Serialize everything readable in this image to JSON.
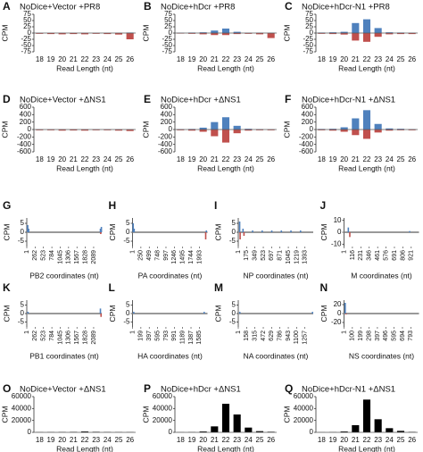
{
  "chart_data": [
    {
      "type": "bar",
      "panel": "A",
      "title": "NoDice+Vector +PR8",
      "x_label": "Read Length (nt)",
      "y_label": "CPM",
      "categories": [
        "18",
        "19",
        "20",
        "21",
        "22",
        "23",
        "24",
        "25",
        "26"
      ],
      "ylim": [
        -75,
        75
      ],
      "yticks": [
        -75,
        -50,
        -25,
        0,
        25,
        50,
        75
      ],
      "series": [
        {
          "color": "#4f81bd",
          "values": [
            0.5,
            0.5,
            0.5,
            0.5,
            0.5,
            0.5,
            0.5,
            0.5,
            2
          ]
        },
        {
          "color": "#c0504d",
          "values": [
            -3,
            -4,
            -5,
            -4,
            -5,
            -3,
            -4,
            -6,
            -25
          ]
        }
      ]
    },
    {
      "type": "bar",
      "panel": "B",
      "title": "NoDice+hDcr +PR8",
      "x_label": "Read Length (nt)",
      "y_label": "CPM",
      "categories": [
        "18",
        "19",
        "20",
        "21",
        "22",
        "23",
        "24",
        "25",
        "26"
      ],
      "ylim": [
        -75,
        75
      ],
      "yticks": [
        -75,
        -50,
        -25,
        0,
        25,
        50,
        75
      ],
      "series": [
        {
          "color": "#4f81bd",
          "values": [
            1,
            2,
            3,
            10,
            18,
            5,
            1,
            1,
            1
          ]
        },
        {
          "color": "#c0504d",
          "values": [
            -2,
            -3,
            -5,
            -8,
            -8,
            -4,
            -3,
            -5,
            -20
          ]
        }
      ]
    },
    {
      "type": "bar",
      "panel": "C",
      "title": "NoDice+hDcr-N1 +PR8",
      "x_label": "Read Length (nt)",
      "y_label": "CPM",
      "categories": [
        "18",
        "19",
        "20",
        "21",
        "22",
        "23",
        "24",
        "25",
        "26"
      ],
      "ylim": [
        -75,
        75
      ],
      "yticks": [
        -75,
        -50,
        -25,
        0,
        25,
        50,
        75
      ],
      "series": [
        {
          "color": "#4f81bd",
          "values": [
            2,
            3,
            5,
            40,
            55,
            20,
            3,
            2,
            1
          ]
        },
        {
          "color": "#c0504d",
          "values": [
            -3,
            -4,
            -6,
            -30,
            -35,
            -15,
            -5,
            -4,
            -4
          ]
        }
      ]
    },
    {
      "type": "bar",
      "panel": "D",
      "title": "NoDice+Vector +ΔNS1",
      "x_label": "Read Length (nt)",
      "y_label": "CPM",
      "categories": [
        "18",
        "19",
        "20",
        "21",
        "22",
        "23",
        "24",
        "25",
        "26"
      ],
      "ylim": [
        -600,
        600
      ],
      "yticks": [
        -600,
        -400,
        -200,
        0,
        200,
        400,
        600
      ],
      "series": [
        {
          "color": "#4f81bd",
          "values": [
            5,
            5,
            5,
            5,
            5,
            5,
            5,
            5,
            5
          ]
        },
        {
          "color": "#c0504d",
          "values": [
            -20,
            -20,
            -30,
            -25,
            -30,
            -20,
            -20,
            -30,
            -40
          ]
        }
      ]
    },
    {
      "type": "bar",
      "panel": "E",
      "title": "NoDice+hDcr +ΔNS1",
      "x_label": "Read Length (nt)",
      "y_label": "CPM",
      "categories": [
        "18",
        "19",
        "20",
        "21",
        "22",
        "23",
        "24",
        "25",
        "26"
      ],
      "ylim": [
        -600,
        600
      ],
      "yticks": [
        -600,
        -400,
        -200,
        0,
        200,
        400,
        600
      ],
      "series": [
        {
          "color": "#4f81bd",
          "values": [
            10,
            15,
            50,
            200,
            330,
            100,
            20,
            10,
            5
          ]
        },
        {
          "color": "#c0504d",
          "values": [
            -20,
            -30,
            -60,
            -180,
            -350,
            -100,
            -30,
            -20,
            -20
          ]
        }
      ]
    },
    {
      "type": "bar",
      "panel": "F",
      "title": "NoDice+hDcr-N1 +ΔNS1",
      "x_label": "Read Length (nt)",
      "y_label": "CPM",
      "categories": [
        "18",
        "19",
        "20",
        "21",
        "22",
        "23",
        "24",
        "25",
        "26"
      ],
      "ylim": [
        -600,
        600
      ],
      "yticks": [
        -600,
        -400,
        -200,
        0,
        200,
        400,
        600
      ],
      "series": [
        {
          "color": "#4f81bd",
          "values": [
            15,
            20,
            60,
            300,
            520,
            150,
            30,
            20,
            10
          ]
        },
        {
          "color": "#c0504d",
          "values": [
            -20,
            -30,
            -60,
            -150,
            -250,
            -80,
            -30,
            -20,
            -20
          ]
        }
      ]
    },
    {
      "type": "coverage",
      "panel": "G",
      "x_label": "PB2 coordinates (nt)",
      "y_label": "CPM",
      "xlim": [
        1,
        2341
      ],
      "xticks": [
        1,
        262,
        523,
        784,
        1045,
        1306,
        1567,
        1828,
        2089
      ],
      "ylim": [
        -8,
        8
      ],
      "yticks": [
        -5,
        0,
        5
      ],
      "series": [
        {
          "color": "#4f81bd",
          "x": [
            30,
            60,
            2300,
            2330
          ],
          "values": [
            4,
            2,
            2,
            3
          ]
        },
        {
          "color": "#c0504d",
          "x": [
            2310
          ],
          "values": [
            -1
          ]
        }
      ]
    },
    {
      "type": "coverage",
      "panel": "H",
      "x_label": "PA coordinates (nt)",
      "y_label": "CPM",
      "xlim": [
        1,
        2233
      ],
      "xticks": [
        1,
        250,
        499,
        748,
        997,
        1246,
        1495,
        1744,
        1993
      ],
      "ylim": [
        -8,
        8
      ],
      "yticks": [
        -5,
        0,
        5
      ],
      "series": [
        {
          "color": "#4f81bd",
          "x": [
            20,
            50,
            2200
          ],
          "values": [
            5,
            2,
            1
          ]
        },
        {
          "color": "#c0504d",
          "x": [
            2180
          ],
          "values": [
            -4
          ]
        }
      ]
    },
    {
      "type": "coverage",
      "panel": "I",
      "x_label": "NP coordinates (nt)",
      "y_label": "CPM",
      "xlim": [
        1,
        1565
      ],
      "xticks": [
        1,
        175,
        349,
        523,
        697,
        871,
        1045,
        1219,
        1393
      ],
      "ylim": [
        -8,
        8
      ],
      "yticks": [
        -5,
        0,
        5
      ],
      "series": [
        {
          "color": "#4f81bd",
          "x": [
            30,
            100,
            300,
            500,
            700,
            900,
            1100,
            1300
          ],
          "values": [
            6,
            2,
            1,
            1,
            1,
            1,
            1,
            1
          ]
        },
        {
          "color": "#c0504d",
          "x": [
            40,
            120
          ],
          "values": [
            -4,
            -2
          ]
        }
      ]
    },
    {
      "type": "coverage",
      "panel": "J",
      "x_label": "M coordinates (nt)",
      "y_label": "CPM",
      "xlim": [
        1,
        1027
      ],
      "xticks": [
        1,
        116,
        231,
        346,
        461,
        576,
        691,
        806,
        921
      ],
      "ylim": [
        -12,
        12
      ],
      "yticks": [
        -10,
        0,
        10
      ],
      "series": [
        {
          "color": "#4f81bd",
          "x": [
            60,
            900
          ],
          "values": [
            4,
            1
          ]
        },
        {
          "color": "#c0504d",
          "x": [
            80
          ],
          "values": [
            -4
          ]
        }
      ]
    },
    {
      "type": "coverage",
      "panel": "K",
      "x_label": "PB1 coordinates (nt)",
      "y_label": "CPM",
      "xlim": [
        1,
        2341
      ],
      "xticks": [
        1,
        262,
        523,
        784,
        1045,
        1306,
        1567,
        1828,
        2089
      ],
      "ylim": [
        -8,
        8
      ],
      "yticks": [
        -5,
        0,
        5
      ],
      "series": [
        {
          "color": "#4f81bd",
          "x": [
            40,
            2300
          ],
          "values": [
            1,
            3
          ]
        },
        {
          "color": "#c0504d",
          "x": [
            2320
          ],
          "values": [
            -2
          ]
        }
      ]
    },
    {
      "type": "coverage",
      "panel": "L",
      "x_label": "HA coordinates (nt)",
      "y_label": "CPM",
      "xlim": [
        1,
        1778
      ],
      "xticks": [
        1,
        199,
        397,
        595,
        793,
        991,
        1189,
        1387,
        1585
      ],
      "ylim": [
        -8,
        8
      ],
      "yticks": [
        -5,
        0,
        5
      ],
      "series": [
        {
          "color": "#4f81bd",
          "x": [
            30,
            1700
          ],
          "values": [
            1,
            1
          ]
        },
        {
          "color": "#c0504d",
          "x": [],
          "values": []
        }
      ]
    },
    {
      "type": "coverage",
      "panel": "M",
      "x_label": "NA coordinates (nt)",
      "y_label": "CPM",
      "xlim": [
        1,
        1413
      ],
      "xticks": [
        1,
        158,
        315,
        472,
        629,
        786,
        943,
        1100,
        1257
      ],
      "ylim": [
        -8,
        8
      ],
      "yticks": [
        -5,
        0,
        5
      ],
      "series": [
        {
          "color": "#4f81bd",
          "x": [
            30,
            1400
          ],
          "values": [
            1,
            1
          ]
        },
        {
          "color": "#c0504d",
          "x": [],
          "values": []
        }
      ]
    },
    {
      "type": "coverage",
      "panel": "N",
      "x_label": "NS coordinates (nt)",
      "y_label": "CPM",
      "xlim": [
        1,
        890
      ],
      "xticks": [
        1,
        100,
        199,
        298,
        397,
        496,
        595,
        694,
        793
      ],
      "ylim": [
        -30,
        30
      ],
      "yticks": [
        -20,
        0,
        20
      ],
      "series": [
        {
          "color": "#4f81bd",
          "x": [
            15
          ],
          "values": [
            24
          ]
        },
        {
          "color": "#c0504d",
          "x": [
            25
          ],
          "values": [
            -2
          ]
        }
      ]
    },
    {
      "type": "bar",
      "panel": "O",
      "title": "NoDice+Vector +ΔNS1",
      "x_label": "Read Length (nt)",
      "y_label": "CPM",
      "categories": [
        "18",
        "19",
        "20",
        "21",
        "22",
        "23",
        "24",
        "25",
        "26"
      ],
      "ylim": [
        0,
        60000
      ],
      "yticks": [
        0,
        20000,
        40000,
        60000
      ],
      "series": [
        {
          "color": "#000000",
          "values": [
            400,
            500,
            600,
            800,
            1500,
            900,
            600,
            500,
            500
          ]
        }
      ]
    },
    {
      "type": "bar",
      "panel": "P",
      "title": "NoDice+hDcr +ΔNS1",
      "x_label": "Read Length (nt)",
      "y_label": "CPM",
      "categories": [
        "18",
        "19",
        "20",
        "21",
        "22",
        "23",
        "24",
        "25",
        "26"
      ],
      "ylim": [
        0,
        60000
      ],
      "yticks": [
        0,
        20000,
        40000,
        60000
      ],
      "series": [
        {
          "color": "#000000",
          "values": [
            300,
            500,
            1500,
            10000,
            48000,
            30000,
            8000,
            2000,
            1000
          ]
        }
      ]
    },
    {
      "type": "bar",
      "panel": "Q",
      "title": "NoDice+hDcr-N1 +ΔNS1",
      "x_label": "Read Length (nt)",
      "y_label": "CPM",
      "categories": [
        "18",
        "19",
        "20",
        "21",
        "22",
        "23",
        "24",
        "25",
        "26"
      ],
      "ylim": [
        0,
        60000
      ],
      "yticks": [
        0,
        20000,
        40000,
        60000
      ],
      "series": [
        {
          "color": "#000000",
          "values": [
            200,
            400,
            1500,
            12000,
            55000,
            22000,
            7000,
            2500,
            800
          ]
        }
      ]
    }
  ]
}
